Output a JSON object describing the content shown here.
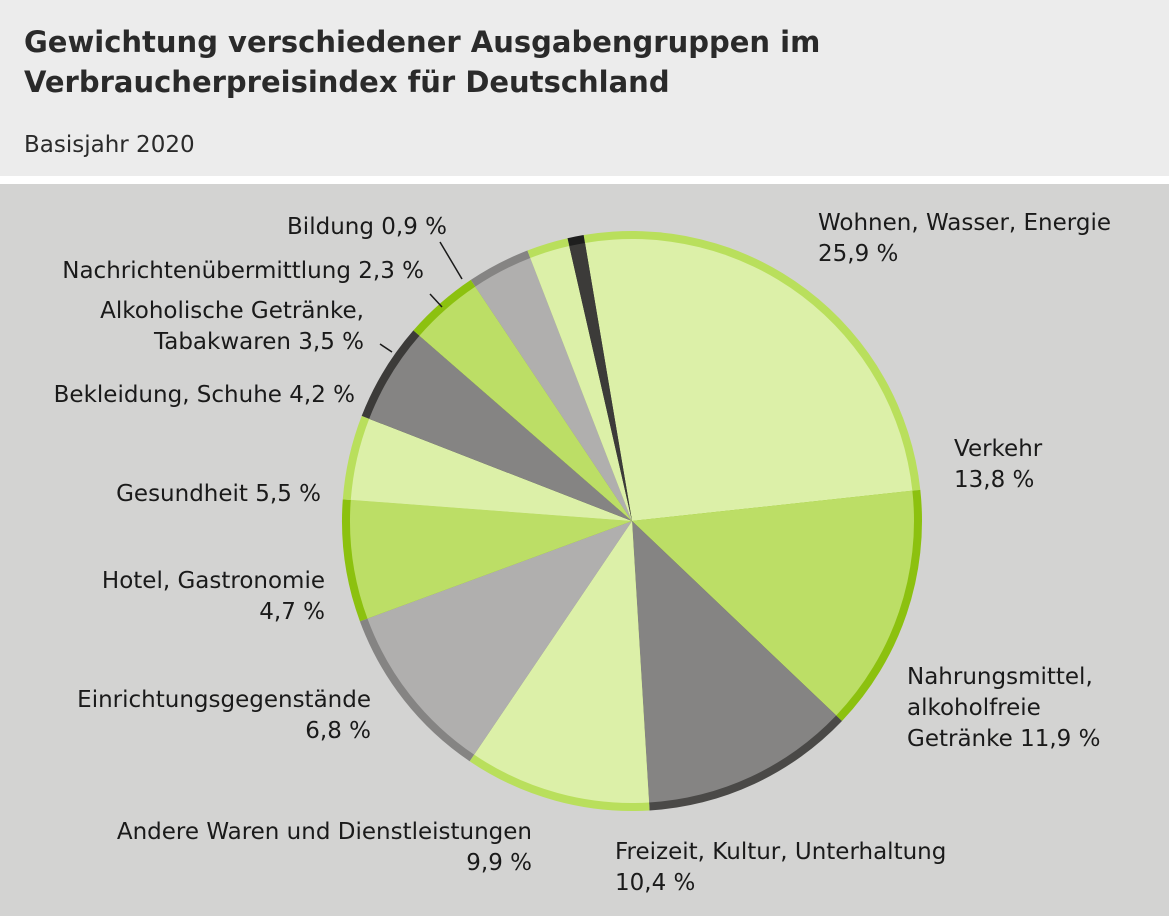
{
  "header": {
    "title_line1": "Gewichtung verschiedener Ausgabengruppen im",
    "title_line2": "Verbraucherpreisindex für Deutschland",
    "subtitle": "Basisjahr 2020"
  },
  "chart_data": {
    "type": "pie",
    "title": "Gewichtung verschiedener Ausgabengruppen im Verbraucherpreisindex für Deutschland",
    "subtitle": "Basisjahr 2020",
    "unit": "%",
    "start_direction": "clockwise from just left of 12 o'clock",
    "slices": [
      {
        "label": "Wohnen, Wasser, Energie",
        "value": 25.9,
        "fill": "#dcf0a8",
        "edge": "#b9df5c"
      },
      {
        "label": "Verkehr",
        "value": 13.8,
        "fill": "#bcde66",
        "edge": "#8cc10f"
      },
      {
        "label": "Nahrungsmittel, alkoholfreie Getränke",
        "value": 11.9,
        "fill": "#858483",
        "edge": "#4a4947"
      },
      {
        "label": "Freizeit, Kultur, Unterhaltung",
        "value": 10.4,
        "fill": "#dcf0a8",
        "edge": "#b9df5c"
      },
      {
        "label": "Andere Waren und Dienstleistungen",
        "value": 9.9,
        "fill": "#b0afae",
        "edge": "#858483"
      },
      {
        "label": "Einrichtungsgegenstände",
        "value": 6.8,
        "fill": "#bcde66",
        "edge": "#8cc10f"
      },
      {
        "label": "Hotel, Gastronomie",
        "value": 4.7,
        "fill": "#dcf0a8",
        "edge": "#b9df5c"
      },
      {
        "label": "Gesundheit",
        "value": 5.5,
        "fill": "#858483",
        "edge": "#3c3b39"
      },
      {
        "label": "Bekleidung, Schuhe",
        "value": 4.2,
        "fill": "#bcde66",
        "edge": "#8cc10f"
      },
      {
        "label": "Alkoholische Getränke, Tabakwaren",
        "value": 3.5,
        "fill": "#b0afae",
        "edge": "#858483"
      },
      {
        "label": "Nachrichtenübermittlung",
        "value": 2.3,
        "fill": "#dcf0a8",
        "edge": "#b9df5c"
      },
      {
        "label": "Bildung",
        "value": 0.9,
        "fill": "#3c3b39",
        "edge": "#1e1e1e"
      }
    ]
  },
  "labels": {
    "wohnen": [
      "Wohnen, Wasser, Energie",
      "25,9 %"
    ],
    "verkehr": [
      "Verkehr",
      "13,8 %"
    ],
    "nahrung": [
      "Nahrungsmittel,",
      "alkoholfreie",
      "Getränke 11,9 %"
    ],
    "freizeit": [
      "Freizeit, Kultur, Unterhaltung",
      "10,4 %"
    ],
    "andere": [
      "Andere Waren und Dienstleistungen",
      "9,9 %"
    ],
    "einrichtung": [
      "Einrichtungsgegenstände",
      "6,8 %"
    ],
    "hotel": [
      "Hotel, Gastronomie",
      "4,7 %"
    ],
    "gesundheit": [
      "Gesundheit 5,5 %"
    ],
    "bekleidung": [
      "Bekleidung, Schuhe 4,2 %"
    ],
    "alkohol": [
      "Alkoholische Getränke,",
      "Tabakwaren 3,5 %"
    ],
    "nachrichten": [
      "Nachrichtenübermittlung 2,3 %"
    ],
    "bildung": [
      "Bildung 0,9 %"
    ]
  }
}
